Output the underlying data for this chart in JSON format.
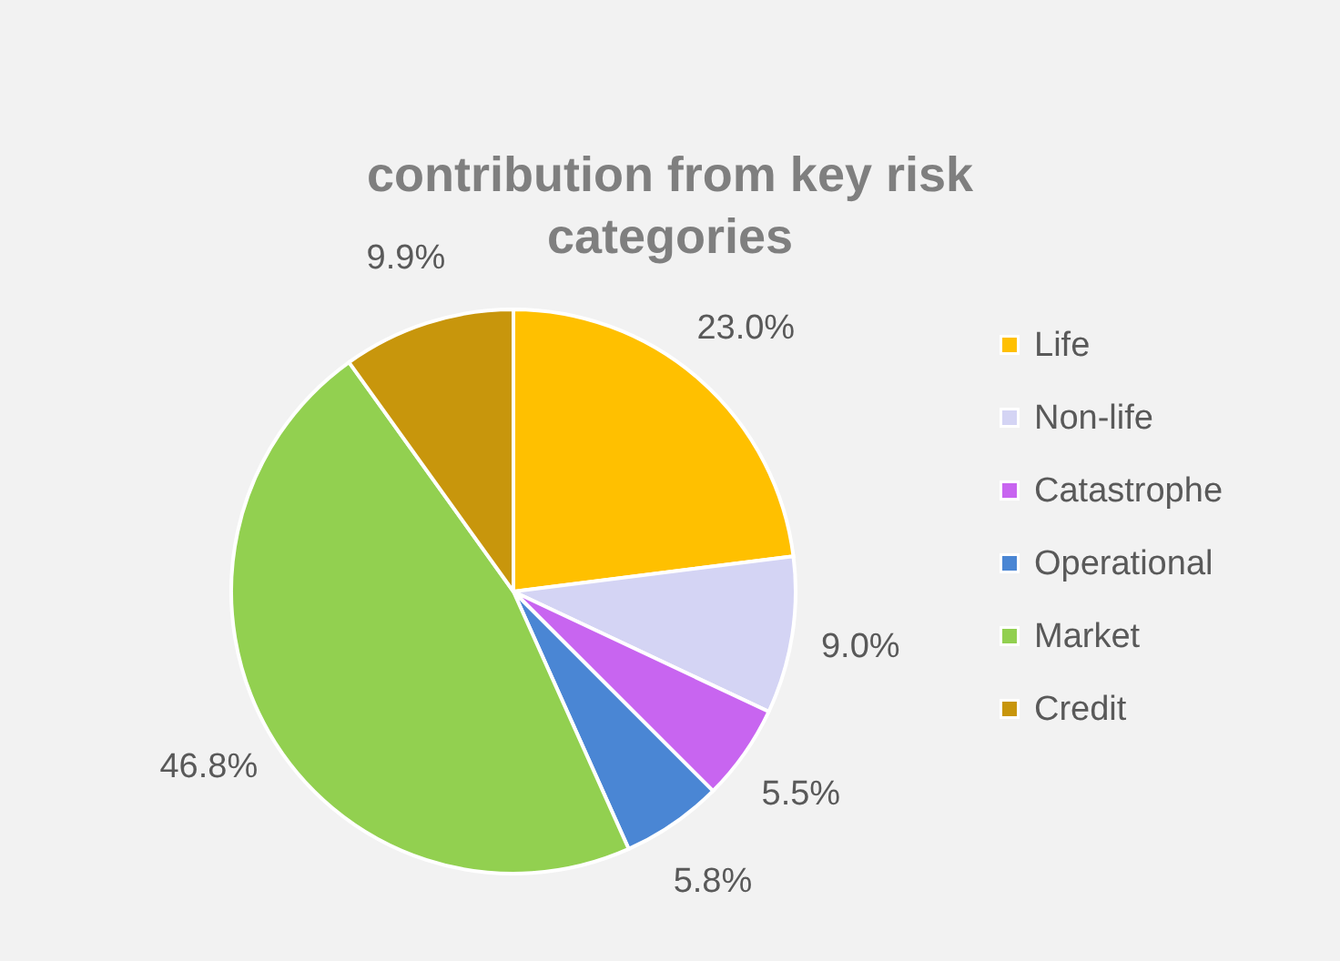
{
  "chart_data": {
    "type": "pie",
    "title": "contribution from key risk categories",
    "categories": [
      "Life",
      "Non-life",
      "Catastrophe",
      "Operational",
      "Market",
      "Credit"
    ],
    "values": [
      23.0,
      9.0,
      5.5,
      5.8,
      46.8,
      9.9
    ],
    "colors": [
      "#ffc000",
      "#d4d4f4",
      "#c865f0",
      "#4a86d4",
      "#92d050",
      "#c8960c"
    ],
    "value_labels": [
      "23.0%",
      "9.0%",
      "5.5%",
      "5.8%",
      "46.8%",
      "9.9%"
    ],
    "legend": "right"
  }
}
